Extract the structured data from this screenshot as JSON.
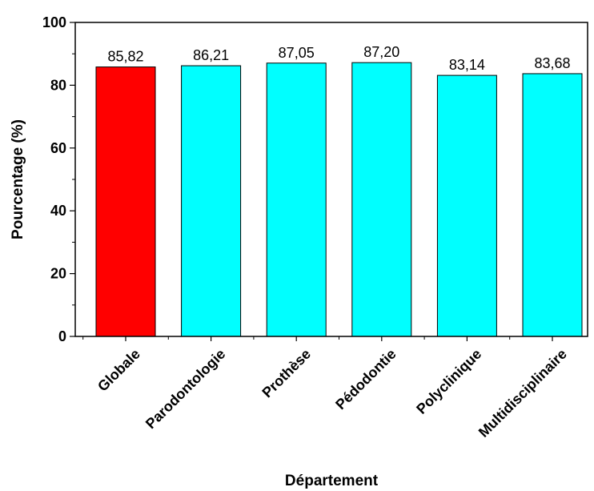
{
  "chart_data": {
    "type": "bar",
    "title": "",
    "xlabel": "Département",
    "ylabel": "Pourcentage (%)",
    "ylim": [
      0,
      100
    ],
    "yticks": [
      0,
      20,
      40,
      60,
      80,
      100
    ],
    "grid": false,
    "legend": "none",
    "categories": [
      "Globale",
      "Parodontologie",
      "Prothèse",
      "Pédodontie",
      "Polyclinique",
      "Multidisciplinaire"
    ],
    "values": [
      85.82,
      86.21,
      87.05,
      87.2,
      83.14,
      83.68
    ],
    "value_labels": [
      "85,82",
      "86,21",
      "87,05",
      "87,20",
      "83,14",
      "83,68"
    ],
    "bar_colors": [
      "#ff0000",
      "#00ffff",
      "#00ffff",
      "#00ffff",
      "#00ffff",
      "#00ffff"
    ]
  }
}
